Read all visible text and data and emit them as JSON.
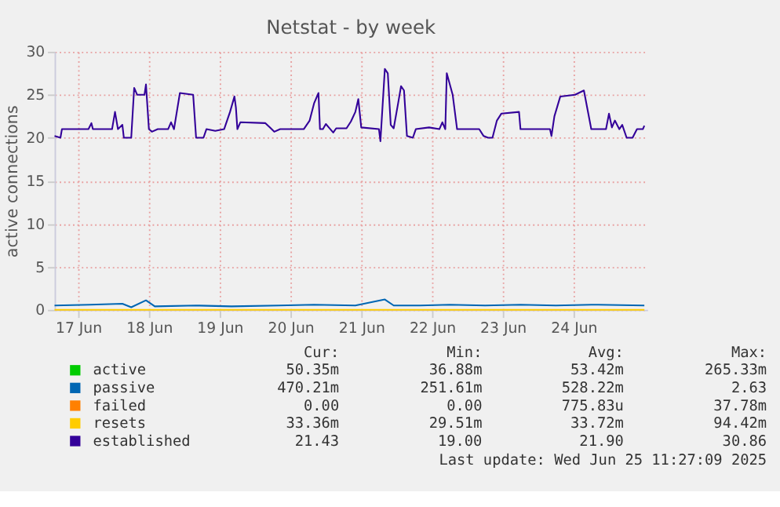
{
  "chart_data": {
    "type": "line",
    "title": "Netstat - by week",
    "ylabel": "active connections",
    "xlim": [
      "2025-06-17T04:00",
      "2025-06-25T13:00"
    ],
    "xticks": [
      {
        "value": "2025-06-17T12:00",
        "label": "17 Jun"
      },
      {
        "value": "2025-06-18T12:00",
        "label": "18 Jun"
      },
      {
        "value": "2025-06-19T12:00",
        "label": "19 Jun"
      },
      {
        "value": "2025-06-20T12:00",
        "label": "20 Jun"
      },
      {
        "value": "2025-06-21T12:00",
        "label": "21 Jun"
      },
      {
        "value": "2025-06-22T12:00",
        "label": "22 Jun"
      },
      {
        "value": "2025-06-23T12:00",
        "label": "23 Jun"
      },
      {
        "value": "2025-06-24T12:00",
        "label": "24 Jun"
      }
    ],
    "ylim": [
      0,
      30
    ],
    "yticks": [
      0,
      5,
      10,
      15,
      20,
      25,
      30
    ],
    "grid": true,
    "legend": "bottom",
    "series": [
      {
        "name": "active",
        "color": "#00cc00"
      },
      {
        "name": "passive",
        "color": "#0066b3",
        "x": [
          "2025-06-17T04:00",
          "2025-06-17T16:00",
          "2025-06-18T03:00",
          "2025-06-18T06:00",
          "2025-06-18T11:00",
          "2025-06-18T14:00",
          "2025-06-19T04:00",
          "2025-06-19T16:00",
          "2025-06-20T08:00",
          "2025-06-20T20:00",
          "2025-06-21T10:00",
          "2025-06-21T20:00",
          "2025-06-21T23:00",
          "2025-06-22T08:00",
          "2025-06-22T18:00",
          "2025-06-23T06:00",
          "2025-06-23T18:00",
          "2025-06-24T06:00",
          "2025-06-24T18:00",
          "2025-06-25T12:00"
        ],
        "values": [
          0.5,
          0.6,
          0.7,
          0.3,
          1.1,
          0.4,
          0.5,
          0.4,
          0.5,
          0.6,
          0.5,
          1.2,
          0.5,
          0.5,
          0.6,
          0.5,
          0.6,
          0.5,
          0.6,
          0.5
        ]
      },
      {
        "name": "failed",
        "color": "#ff8000"
      },
      {
        "name": "resets",
        "color": "#ffcc00",
        "x": [
          "2025-06-17T04:00",
          "2025-06-21T00:00",
          "2025-06-25T12:00"
        ],
        "values": [
          0,
          0,
          0
        ]
      },
      {
        "name": "established",
        "color": "#330099",
        "x": [
          "2025-06-17T04:00",
          "2025-06-17T06:00",
          "2025-06-17T06:30",
          "2025-06-17T15:30",
          "2025-06-17T16:30",
          "2025-06-17T17:00",
          "2025-06-17T23:30",
          "2025-06-18T00:30",
          "2025-06-18T01:30",
          "2025-06-18T03:00",
          "2025-06-18T03:30",
          "2025-06-18T06:00",
          "2025-06-18T07:00",
          "2025-06-18T08:00",
          "2025-06-18T10:30",
          "2025-06-18T11:00",
          "2025-06-18T12:00",
          "2025-06-18T13:00",
          "2025-06-18T15:00",
          "2025-06-18T18:30",
          "2025-06-18T19:30",
          "2025-06-18T20:30",
          "2025-06-18T22:30",
          "2025-06-19T03:00",
          "2025-06-19T04:00",
          "2025-06-19T06:30",
          "2025-06-19T07:30",
          "2025-06-19T10:30",
          "2025-06-19T13:30",
          "2025-06-19T15:30",
          "2025-06-19T17:00",
          "2025-06-19T17:30",
          "2025-06-19T18:00",
          "2025-06-19T19:00",
          "2025-06-20T03:30",
          "2025-06-20T05:00",
          "2025-06-20T06:30",
          "2025-06-20T08:30",
          "2025-06-20T16:30",
          "2025-06-20T18:30",
          "2025-06-20T20:00",
          "2025-06-20T21:30",
          "2025-06-20T22:00",
          "2025-06-20T23:00",
          "2025-06-21T00:00",
          "2025-06-21T01:00",
          "2025-06-21T02:30",
          "2025-06-21T03:30",
          "2025-06-21T07:00",
          "2025-06-21T08:30",
          "2025-06-21T10:00",
          "2025-06-21T11:00",
          "2025-06-21T12:00",
          "2025-06-21T18:00",
          "2025-06-21T18:30",
          "2025-06-21T20:00",
          "2025-06-21T21:00",
          "2025-06-21T22:00",
          "2025-06-21T23:00",
          "2025-06-22T00:30",
          "2025-06-22T01:30",
          "2025-06-22T02:30",
          "2025-06-22T03:30",
          "2025-06-22T05:30",
          "2025-06-22T06:30",
          "2025-06-22T11:00",
          "2025-06-22T14:30",
          "2025-06-22T15:30",
          "2025-06-22T16:30",
          "2025-06-22T17:00",
          "2025-06-22T19:00",
          "2025-06-22T20:30",
          "2025-06-23T04:00",
          "2025-06-23T05:30",
          "2025-06-23T07:00",
          "2025-06-23T08:30",
          "2025-06-23T10:00",
          "2025-06-23T11:30",
          "2025-06-23T17:30",
          "2025-06-23T18:00",
          "2025-06-23T22:30",
          "2025-06-24T04:00",
          "2025-06-24T04:30",
          "2025-06-24T05:30",
          "2025-06-24T07:30",
          "2025-06-24T12:30",
          "2025-06-24T15:30",
          "2025-06-24T18:00",
          "2025-06-24T23:00",
          "2025-06-25T00:00",
          "2025-06-25T01:00",
          "2025-06-25T02:00",
          "2025-06-25T03:30",
          "2025-06-25T04:30",
          "2025-06-25T06:00",
          "2025-06-25T08:00",
          "2025-06-25T09:30",
          "2025-06-25T11:30",
          "2025-06-25T12:00"
        ],
        "values": [
          20.2,
          20.0,
          21.0,
          21.0,
          21.7,
          21.0,
          21.0,
          23.0,
          21.0,
          21.5,
          20.0,
          20.0,
          25.8,
          25.0,
          25.0,
          26.2,
          21.0,
          20.7,
          21.0,
          21.0,
          21.8,
          21.0,
          25.2,
          25.0,
          20.0,
          20.0,
          21.0,
          20.8,
          21.0,
          23.0,
          24.8,
          23.5,
          21.0,
          21.8,
          21.7,
          21.2,
          20.7,
          21.0,
          21.0,
          22.0,
          24.0,
          25.2,
          21.0,
          21.0,
          21.6,
          21.2,
          20.6,
          21.1,
          21.1,
          21.9,
          23.0,
          24.5,
          21.2,
          21.0,
          19.6,
          28.0,
          27.5,
          21.5,
          21.1,
          24.0,
          26.0,
          25.5,
          20.2,
          20.0,
          21.0,
          21.2,
          21.0,
          21.8,
          21.0,
          27.5,
          25.0,
          21.0,
          21.0,
          20.2,
          20.0,
          20.0,
          22.0,
          22.8,
          23.0,
          21.0,
          21.0,
          21.0,
          20.2,
          22.5,
          24.8,
          25.0,
          25.5,
          21.0,
          21.0,
          22.8,
          21.2,
          22.0,
          21.0,
          21.5,
          20.0,
          20.0,
          21.0,
          21.0,
          21.4
        ]
      }
    ],
    "annotations": [
      "Cur:",
      "Min:",
      "Avg:",
      "Max:",
      "50.35m",
      "36.88m",
      "53.42m",
      "265.33m",
      "470.21m",
      "251.61m",
      "528.22m",
      "2.63",
      "0.00",
      "0.00",
      "775.83u",
      "37.78m",
      "33.36m",
      "29.51m",
      "33.72m",
      "94.42m",
      "21.43",
      "19.00",
      "21.90",
      "30.86",
      "Last update: Wed Jun 25 11:27:09 2025"
    ]
  }
}
